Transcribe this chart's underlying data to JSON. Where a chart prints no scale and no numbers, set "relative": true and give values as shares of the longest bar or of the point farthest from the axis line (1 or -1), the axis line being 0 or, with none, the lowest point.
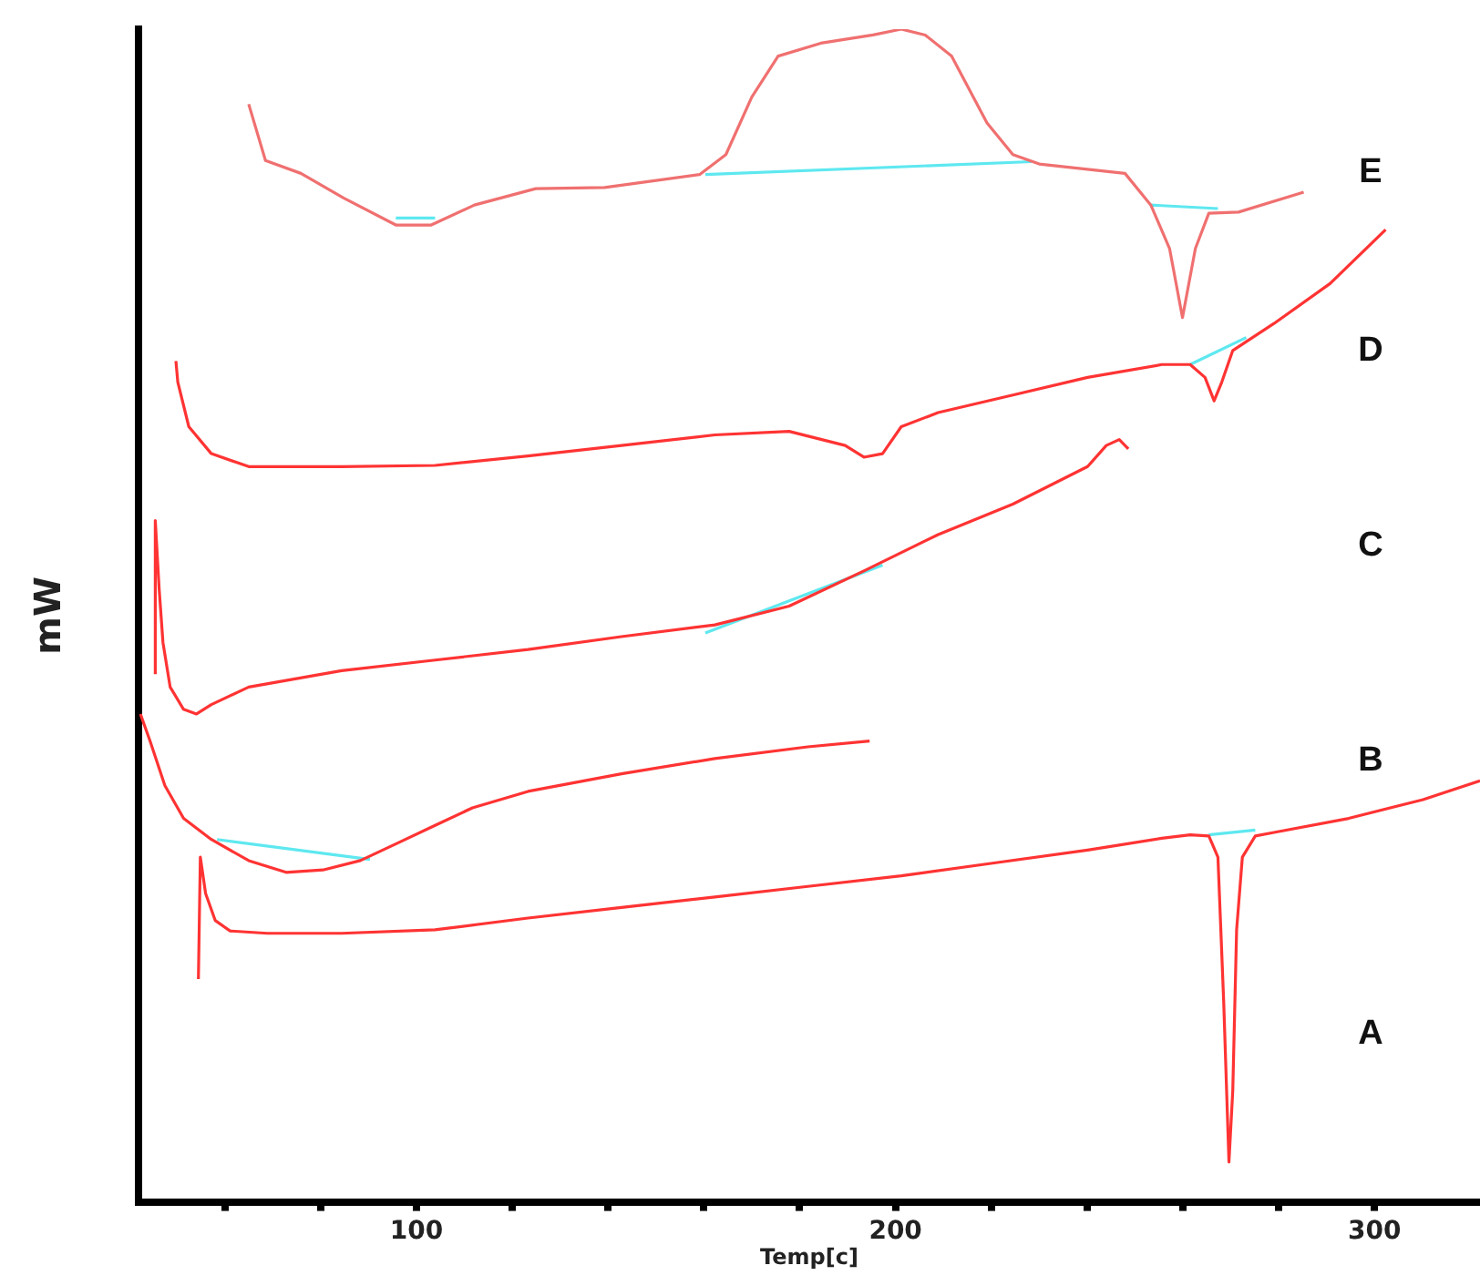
{
  "chart_data": {
    "type": "line",
    "xlabel": "Temp[c]",
    "ylabel": "mW",
    "relative": true,
    "grid": false,
    "legend": false,
    "marker": "none",
    "line_style": "solid",
    "xlim": [
      42,
      322
    ],
    "xticks": [
      {
        "value": 60,
        "label": null
      },
      {
        "value": 80,
        "label": null
      },
      100,
      {
        "value": 120,
        "label": null
      },
      {
        "value": 140,
        "label": null
      },
      {
        "value": 160,
        "label": null
      },
      {
        "value": 180,
        "label": null
      },
      200,
      {
        "value": 220,
        "label": null
      },
      {
        "value": 240,
        "label": null
      },
      {
        "value": 260,
        "label": null
      },
      {
        "value": 280,
        "label": null
      },
      300
    ],
    "series": [
      {
        "color": "#ff3333",
        "x": [
          54.5,
          54.9,
          56.0,
          58.0,
          61.1,
          68.9,
          84.4,
          103.9,
          123.3,
          142.8,
          162.3,
          181.7,
          201.2,
          220.6,
          240.1,
          255.6,
          261.5,
          265.4,
          267.3,
          268.5,
          269.6,
          270.4,
          271.2,
          272.4,
          275.1,
          279.0,
          294.6,
          310.1,
          322
        ],
        "values": [
          0.19,
          0.294,
          0.263,
          0.24,
          0.231,
          0.229,
          0.229,
          0.232,
          0.242,
          0.251,
          0.26,
          0.269,
          0.278,
          0.289,
          0.3,
          0.31,
          0.313,
          0.312,
          0.294,
          0.171,
          0.034,
          0.095,
          0.232,
          0.294,
          0.312,
          0.315,
          0.327,
          0.343,
          0.359
        ]
      },
      {
        "color": "#ff3333",
        "x": [
          42.4,
          44.4,
          47.5,
          51.4,
          57.2,
          65.0,
          72.8,
          80.5,
          88.3,
          96.1,
          103.9,
          111.7,
          123.3,
          142.8,
          162.3,
          181.7,
          194.6
        ],
        "values": [
          0.416,
          0.393,
          0.355,
          0.327,
          0.309,
          0.291,
          0.281,
          0.283,
          0.291,
          0.306,
          0.321,
          0.336,
          0.35,
          0.365,
          0.378,
          0.388,
          0.393
        ]
      },
      {
        "color": "#ff3333",
        "x": [
          45.5,
          45.5,
          46.3,
          47.1,
          48.6,
          51.4,
          54.1,
          57.2,
          65.0,
          84.4,
          103.9,
          123.3,
          142.8,
          162.3,
          177.8,
          193.4,
          208.9,
          224.5,
          240.1,
          244.0,
          246.7,
          248.6
        ],
        "values": [
          0.45,
          0.581,
          0.523,
          0.477,
          0.439,
          0.42,
          0.416,
          0.424,
          0.439,
          0.453,
          0.462,
          0.471,
          0.482,
          0.492,
          0.508,
          0.538,
          0.569,
          0.595,
          0.627,
          0.645,
          0.65,
          0.642
        ]
      },
      {
        "color": "#ff3333",
        "x": [
          49.8,
          50.2,
          52.5,
          57.2,
          65.0,
          84.4,
          103.9,
          123.3,
          142.8,
          162.3,
          177.8,
          189.5,
          193.4,
          197.3,
          201.2,
          208.9,
          224.5,
          240.1,
          255.6,
          261.5,
          264.6,
          266.5,
          268.1,
          270.4,
          279.0,
          290.7,
          302.3
        ],
        "values": [
          0.717,
          0.699,
          0.661,
          0.638,
          0.627,
          0.627,
          0.628,
          0.636,
          0.645,
          0.654,
          0.657,
          0.645,
          0.635,
          0.638,
          0.661,
          0.673,
          0.688,
          0.703,
          0.714,
          0.714,
          0.703,
          0.683,
          0.699,
          0.726,
          0.749,
          0.783,
          0.829
        ]
      },
      {
        "color": "#f07070",
        "x": [
          65.0,
          68.5,
          75.9,
          84.8,
          95.7,
          103.1,
          112.1,
          124.9,
          139.3,
          159.1,
          164.6,
          170.0,
          175.5,
          184.4,
          195.3,
          201.2,
          206.2,
          211.7,
          219.1,
          224.5,
          230.0,
          247.9,
          253.3,
          257.2,
          259.9,
          262.6,
          265.4,
          271.6,
          285.2
        ],
        "values": [
          0.936,
          0.888,
          0.877,
          0.856,
          0.833,
          0.833,
          0.85,
          0.864,
          0.865,
          0.876,
          0.893,
          0.942,
          0.977,
          0.988,
          0.995,
          1,
          0.995,
          0.977,
          0.92,
          0.893,
          0.885,
          0.877,
          0.85,
          0.813,
          0.754,
          0.813,
          0.843,
          0.844,
          0.861
        ]
      },
      {
        "color": "#5ee8f0",
        "x": [
          58.4,
          90.3
        ],
        "values": [
          0.309,
          0.292
        ]
      },
      {
        "color": "#5ee8f0",
        "x": [
          160.3,
          197.3
        ],
        "values": [
          0.485,
          0.543
        ]
      },
      {
        "color": "#5ee8f0",
        "x": [
          261.5,
          273.2
        ],
        "values": [
          0.714,
          0.737
        ]
      },
      {
        "color": "#5ee8f0",
        "x": [
          265.4,
          275.1
        ],
        "values": [
          0.313,
          0.317
        ]
      },
      {
        "color": "#5ee8f0",
        "x": [
          95.7,
          103.9
        ],
        "values": [
          0.839,
          0.839
        ]
      },
      {
        "color": "#5ee8f0",
        "x": [
          160.3,
          228.4
        ],
        "values": [
          0.876,
          0.887
        ]
      },
      {
        "color": "#5ee8f0",
        "x": [
          253.3,
          267.3
        ],
        "values": [
          0.85,
          0.847
        ]
      }
    ],
    "annotations": [
      "A",
      "B",
      "C",
      "D",
      "E"
    ]
  }
}
